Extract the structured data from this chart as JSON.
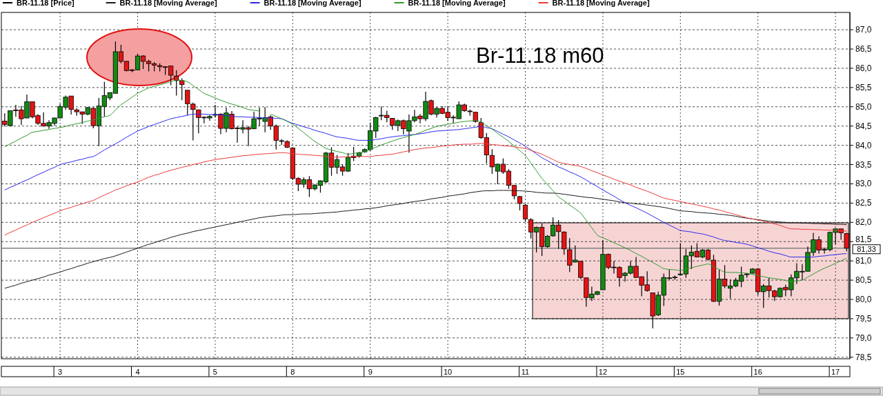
{
  "chart_data": {
    "type": "candlestick",
    "title": "Br-11.18 m60",
    "categories": [
      null,
      null,
      null,
      null,
      null,
      null,
      null,
      null,
      null,
      null,
      "3",
      null,
      null,
      null,
      null,
      null,
      null,
      null,
      null,
      null,
      null,
      null,
      null,
      null,
      "4",
      null,
      null,
      null,
      null,
      null,
      null,
      null,
      null,
      null,
      null,
      null,
      null,
      null,
      "5",
      null,
      null,
      null,
      null,
      null,
      null,
      null,
      null,
      null,
      null,
      null,
      null,
      null,
      "8",
      null,
      null,
      null,
      null,
      null,
      null,
      null,
      null,
      null,
      null,
      null,
      null,
      null,
      "9",
      null,
      null,
      null,
      null,
      null,
      null,
      null,
      null,
      null,
      null,
      null,
      null,
      null,
      "10",
      null,
      null,
      null,
      null,
      null,
      null,
      null,
      null,
      null,
      null,
      null,
      null,
      null,
      "11",
      null,
      null,
      null,
      null,
      null,
      null,
      null,
      null,
      null,
      null,
      null,
      null,
      null,
      "12",
      null,
      null,
      null,
      null,
      null,
      null,
      null,
      null,
      null,
      null,
      null,
      null,
      null,
      "15",
      null,
      null,
      null,
      null,
      null,
      null,
      null,
      null,
      null,
      null,
      null,
      null,
      null,
      "16",
      null,
      null,
      null,
      null,
      null,
      null,
      null,
      null,
      null,
      null,
      null,
      null,
      null,
      "17",
      null,
      null
    ],
    "series": [
      {
        "name": "BR-11.18 [Price]",
        "color": "#000000",
        "ohlc": [
          [
            84.63,
            84.83,
            84.49,
            84.54
          ],
          [
            84.51,
            84.9,
            84.49,
            84.9
          ],
          [
            84.92,
            85.05,
            84.74,
            84.9
          ],
          [
            84.92,
            85.02,
            84.53,
            84.69
          ],
          [
            84.71,
            85.32,
            84.7,
            85.13
          ],
          [
            85.13,
            85.14,
            84.7,
            84.74
          ],
          [
            84.77,
            84.81,
            84.53,
            84.57
          ],
          [
            84.57,
            84.86,
            84.5,
            84.5
          ],
          [
            84.5,
            84.65,
            84.43,
            84.59
          ],
          [
            84.57,
            84.72,
            84.51,
            84.71
          ],
          [
            84.71,
            85.08,
            84.7,
            85.01
          ],
          [
            84.99,
            85.29,
            84.92,
            85.25
          ],
          [
            85.28,
            85.28,
            84.8,
            84.93
          ],
          [
            84.92,
            84.96,
            84.77,
            84.87
          ],
          [
            84.87,
            84.87,
            84.56,
            84.81
          ],
          [
            84.81,
            84.99,
            84.78,
            84.98
          ],
          [
            84.96,
            84.99,
            84.44,
            84.51
          ],
          [
            84.51,
            85.23,
            83.98,
            85.02
          ],
          [
            85.01,
            85.65,
            84.75,
            85.29
          ],
          [
            85.23,
            85.37,
            85.17,
            85.37
          ],
          [
            85.35,
            86.7,
            85.35,
            86.43
          ],
          [
            86.43,
            86.61,
            86.13,
            86.18
          ],
          [
            86.18,
            86.19,
            85.92,
            85.94
          ],
          [
            85.96,
            85.98,
            85.9,
            85.94
          ],
          [
            85.96,
            86.38,
            85.95,
            86.32
          ],
          [
            86.32,
            86.34,
            85.98,
            86.18
          ],
          [
            86.18,
            86.22,
            85.92,
            86.12
          ],
          [
            86.12,
            86.16,
            85.92,
            86.08
          ],
          [
            86.07,
            86.13,
            85.92,
            86.04
          ],
          [
            86.04,
            86.05,
            85.83,
            86.03
          ],
          [
            86.06,
            86.07,
            85.56,
            85.82
          ],
          [
            85.8,
            85.95,
            85.29,
            85.68
          ],
          [
            85.68,
            85.74,
            85.17,
            85.58
          ],
          [
            85.43,
            85.43,
            84.78,
            85.08
          ],
          [
            85.07,
            85.11,
            84.13,
            84.93
          ],
          [
            84.92,
            84.93,
            84.31,
            84.72
          ],
          [
            84.73,
            84.75,
            84.57,
            84.72
          ],
          [
            84.71,
            84.78,
            84.64,
            84.75
          ],
          [
            84.79,
            85.05,
            84.72,
            84.8
          ],
          [
            84.81,
            84.83,
            84.29,
            84.44
          ],
          [
            84.44,
            84.98,
            84.34,
            84.84
          ],
          [
            84.81,
            84.89,
            84.41,
            84.43
          ],
          [
            84.45,
            84.49,
            84.07,
            84.44
          ],
          [
            84.42,
            84.65,
            84.31,
            84.46
          ],
          [
            84.46,
            84.5,
            83.98,
            84.42
          ],
          [
            84.43,
            84.87,
            84.42,
            84.69
          ],
          [
            84.69,
            84.98,
            84.51,
            84.7
          ],
          [
            84.62,
            84.99,
            84.34,
            84.72
          ],
          [
            84.74,
            84.78,
            84.4,
            84.5
          ],
          [
            84.5,
            84.54,
            83.89,
            84.13
          ],
          [
            84.12,
            84.16,
            84.01,
            84.11
          ],
          [
            84.1,
            84.13,
            83.93,
            83.95
          ],
          [
            83.93,
            83.95,
            83.1,
            83.14
          ],
          [
            83.14,
            83.17,
            82.81,
            82.99
          ],
          [
            82.99,
            83.17,
            82.9,
            83.11
          ],
          [
            83.11,
            83.2,
            82.66,
            82.87
          ],
          [
            82.87,
            82.99,
            82.83,
            82.97
          ],
          [
            82.96,
            83.09,
            82.77,
            83.08
          ],
          [
            83.05,
            83.83,
            83.02,
            83.8
          ],
          [
            83.8,
            83.95,
            83.21,
            83.43
          ],
          [
            83.43,
            83.75,
            83.26,
            83.63
          ],
          [
            83.44,
            83.51,
            83.21,
            83.33
          ],
          [
            83.33,
            83.8,
            83.31,
            83.69
          ],
          [
            83.72,
            83.96,
            83.59,
            83.68
          ],
          [
            83.72,
            83.83,
            83.68,
            83.81
          ],
          [
            83.83,
            83.92,
            83.81,
            83.89
          ],
          [
            83.89,
            84.59,
            83.86,
            84.38
          ],
          [
            84.37,
            84.74,
            84.19,
            84.72
          ],
          [
            84.77,
            85.01,
            84.65,
            84.78
          ],
          [
            84.78,
            84.9,
            84.6,
            84.72
          ],
          [
            84.7,
            84.71,
            84.4,
            84.52
          ],
          [
            84.52,
            84.67,
            84.37,
            84.64
          ],
          [
            84.64,
            84.67,
            84.28,
            84.43
          ],
          [
            84.37,
            84.8,
            83.81,
            84.64
          ],
          [
            84.64,
            84.92,
            84.6,
            84.74
          ],
          [
            84.76,
            84.81,
            84.57,
            84.69
          ],
          [
            84.69,
            85.39,
            84.63,
            85.14
          ],
          [
            85.16,
            85.19,
            84.78,
            84.81
          ],
          [
            84.81,
            84.99,
            84.72,
            84.96
          ],
          [
            84.96,
            85.02,
            84.81,
            84.83
          ],
          [
            84.86,
            85.01,
            84.63,
            84.72
          ],
          [
            84.73,
            84.78,
            84.57,
            84.72
          ],
          [
            84.69,
            85.14,
            84.69,
            85.05
          ],
          [
            85.05,
            85.08,
            84.87,
            84.9
          ],
          [
            84.89,
            84.93,
            84.77,
            84.88
          ],
          [
            84.86,
            84.87,
            84.59,
            84.62
          ],
          [
            84.59,
            84.71,
            84.17,
            84.2
          ],
          [
            84.2,
            84.32,
            83.53,
            83.75
          ],
          [
            83.74,
            83.9,
            83.26,
            83.44
          ],
          [
            83.33,
            83.53,
            82.99,
            83.51
          ],
          [
            83.51,
            83.66,
            83.26,
            83.31
          ],
          [
            83.33,
            83.38,
            82.87,
            82.96
          ],
          [
            82.96,
            82.97,
            82.6,
            82.69
          ],
          [
            82.67,
            82.69,
            82.31,
            82.49
          ],
          [
            82.45,
            82.48,
            82.01,
            82.09
          ],
          [
            82.07,
            82.11,
            81.58,
            81.75
          ],
          [
            81.75,
            81.89,
            81.22,
            81.87
          ],
          [
            81.87,
            81.97,
            81.13,
            81.37
          ],
          [
            81.37,
            81.67,
            81.34,
            81.64
          ],
          [
            81.65,
            82.13,
            81.63,
            81.93
          ],
          [
            81.93,
            82.06,
            81.31,
            81.76
          ],
          [
            81.75,
            81.77,
            81.16,
            81.31
          ],
          [
            81.29,
            81.59,
            80.71,
            80.89
          ],
          [
            80.97,
            81.4,
            80.96,
            81.02
          ],
          [
            80.99,
            80.99,
            80.53,
            80.57
          ],
          [
            80.56,
            80.57,
            79.81,
            80.05
          ],
          [
            80.04,
            80.33,
            79.96,
            80.14
          ],
          [
            80.13,
            80.22,
            80.11,
            80.2
          ],
          [
            80.25,
            81.53,
            80.25,
            81.17
          ],
          [
            81.17,
            81.19,
            80.79,
            80.83
          ],
          [
            80.84,
            81,
            80.67,
            80.83
          ],
          [
            80.83,
            80.86,
            80.33,
            80.57
          ],
          [
            80.62,
            80.71,
            80.46,
            80.68
          ],
          [
            80.68,
            81,
            80.65,
            80.86
          ],
          [
            80.86,
            81.1,
            80.56,
            80.57
          ],
          [
            80.59,
            80.59,
            80.08,
            80.37
          ],
          [
            80.38,
            80.73,
            80.2,
            80.23
          ],
          [
            80.17,
            80.17,
            79.25,
            79.57
          ],
          [
            79.6,
            80.2,
            79.57,
            80.11
          ],
          [
            80.11,
            80.67,
            79.83,
            80.57
          ],
          [
            80.55,
            80.77,
            80.51,
            80.56
          ],
          [
            80.57,
            80.62,
            80.51,
            80.58
          ],
          [
            80.64,
            81.46,
            80.62,
            80.66
          ],
          [
            80.66,
            81.31,
            80.56,
            81.13
          ],
          [
            81.13,
            81.4,
            80.79,
            81.23
          ],
          [
            81.25,
            81.46,
            81.09,
            81.1
          ],
          [
            81.1,
            81.31,
            81.07,
            81.28
          ],
          [
            81.28,
            81.31,
            81.01,
            81.04
          ],
          [
            81.02,
            81.16,
            79.93,
            79.95
          ],
          [
            79.95,
            80.77,
            79.84,
            80.53
          ],
          [
            80.53,
            80.89,
            80.29,
            80.35
          ],
          [
            80.29,
            80.52,
            80.02,
            80.35
          ],
          [
            80.35,
            80.56,
            80.32,
            80.5
          ],
          [
            80.47,
            80.85,
            80.32,
            80.63
          ],
          [
            80.65,
            80.68,
            80.56,
            80.66
          ],
          [
            80.68,
            80.81,
            80.67,
            80.79
          ],
          [
            80.79,
            80.8,
            80.11,
            80.2
          ],
          [
            80.2,
            80.4,
            79.78,
            80.35
          ],
          [
            80.35,
            80.56,
            80.05,
            80.23
          ],
          [
            80.22,
            80.25,
            79.96,
            80.07
          ],
          [
            80.07,
            80.31,
            80.05,
            80.29
          ],
          [
            80.31,
            80.38,
            80.08,
            80.25
          ],
          [
            80.25,
            80.65,
            80.08,
            80.56
          ],
          [
            80.56,
            80.94,
            80.4,
            80.73
          ],
          [
            80.72,
            80.92,
            80.5,
            80.73
          ],
          [
            80.73,
            81.37,
            80.73,
            81.22
          ],
          [
            81.22,
            81.73,
            81.13,
            81.55
          ],
          [
            81.55,
            81.64,
            81.19,
            81.28
          ],
          [
            81.29,
            81.34,
            81.19,
            81.3
          ],
          [
            81.29,
            81.76,
            81.25,
            81.74
          ],
          [
            81.74,
            81.85,
            81.43,
            81.83
          ],
          [
            81.83,
            81.83,
            81.55,
            81.73
          ],
          [
            81.71,
            81.73,
            81.25,
            81.33
          ]
        ]
      },
      {
        "name": "BR-11.18 [Moving Average]",
        "type": "line",
        "color": "#1a1a1a",
        "values": [
          80.29,
          80.33,
          80.37,
          80.42,
          80.46,
          80.5,
          80.54,
          80.58,
          80.63,
          80.67,
          80.71,
          80.76,
          80.8,
          80.85,
          80.89,
          80.94,
          80.98,
          81.02,
          81.06,
          81.09,
          81.13,
          81.18,
          81.23,
          81.28,
          81.33,
          81.38,
          81.43,
          81.47,
          81.52,
          81.56,
          81.61,
          81.65,
          81.69,
          81.72,
          81.76,
          81.79,
          81.82,
          81.85,
          81.88,
          81.91,
          81.94,
          81.97,
          82,
          82.03,
          82.06,
          82.09,
          82.12,
          82.14,
          82.16,
          82.17,
          82.19,
          82.2,
          82.2,
          82.21,
          82.22,
          82.22,
          82.23,
          82.24,
          82.25,
          82.26,
          82.27,
          82.29,
          82.3,
          82.32,
          82.33,
          82.35,
          82.36,
          82.38,
          82.4,
          82.43,
          82.45,
          82.47,
          82.49,
          82.52,
          82.54,
          82.56,
          82.58,
          82.61,
          82.63,
          82.65,
          82.68,
          82.7,
          82.72,
          82.74,
          82.77,
          82.79,
          82.81,
          82.82,
          82.82,
          82.83,
          82.83,
          82.83,
          82.82,
          82.82,
          82.81,
          82.8,
          82.78,
          82.77,
          82.76,
          82.76,
          82.75,
          82.73,
          82.71,
          82.69,
          82.67,
          82.65,
          82.64,
          82.62,
          82.6,
          82.58,
          82.56,
          82.53,
          82.51,
          82.5,
          82.48,
          82.47,
          82.45,
          82.43,
          82.41,
          82.39,
          82.36,
          82.33,
          82.3,
          82.29,
          82.28,
          82.26,
          82.25,
          82.24,
          82.23,
          82.21,
          82.2,
          82.18,
          82.16,
          82.13,
          82.11,
          82.09,
          82.07,
          82.05,
          82.03,
          82.02,
          82.01,
          82,
          81.99,
          81.99,
          81.98,
          81.98,
          81.97,
          81.97,
          81.96,
          81.96,
          81.95,
          81.95,
          81.94
        ]
      },
      {
        "name": "BR-11.18 [Moving Average]",
        "type": "line",
        "color": "#2a2aee",
        "values": [
          82.84,
          82.91,
          82.97,
          83.04,
          83.1,
          83.17,
          83.24,
          83.3,
          83.37,
          83.43,
          83.5,
          83.54,
          83.57,
          83.61,
          83.64,
          83.68,
          83.71,
          83.79,
          83.88,
          83.96,
          84.04,
          84.12,
          84.21,
          84.29,
          84.37,
          84.43,
          84.49,
          84.54,
          84.59,
          84.64,
          84.69,
          84.72,
          84.75,
          84.78,
          84.81,
          84.81,
          84.81,
          84.8,
          84.8,
          84.79,
          84.77,
          84.76,
          84.74,
          84.74,
          84.73,
          84.73,
          84.72,
          84.71,
          84.71,
          84.7,
          84.69,
          84.63,
          84.57,
          84.53,
          84.48,
          84.44,
          84.39,
          84.35,
          84.31,
          84.26,
          84.22,
          84.2,
          84.18,
          84.15,
          84.13,
          84.13,
          84.13,
          84.15,
          84.17,
          84.2,
          84.22,
          84.24,
          84.25,
          84.27,
          84.28,
          84.3,
          84.32,
          84.35,
          84.37,
          84.38,
          84.39,
          84.4,
          84.41,
          84.43,
          84.45,
          84.47,
          84.49,
          84.46,
          84.43,
          84.36,
          84.29,
          84.22,
          84.14,
          84.06,
          83.98,
          83.88,
          83.78,
          83.68,
          83.6,
          83.52,
          83.44,
          83.38,
          83.31,
          83.25,
          83.18,
          83.1,
          83.01,
          82.93,
          82.84,
          82.76,
          82.68,
          82.59,
          82.51,
          82.44,
          82.38,
          82.31,
          82.24,
          82.16,
          82.08,
          82,
          81.93,
          81.86,
          81.79,
          81.77,
          81.75,
          81.72,
          81.7,
          81.66,
          81.62,
          81.57,
          81.53,
          81.51,
          81.48,
          81.46,
          81.43,
          81.39,
          81.34,
          81.3,
          81.25,
          81.21,
          81.18,
          81.14,
          81.1,
          81.1,
          81.1,
          81.1,
          81.1,
          81.12,
          81.13,
          81.15,
          81.16,
          81.18,
          81.19
        ]
      },
      {
        "name": "BR-11.18 [Moving Average]",
        "type": "line",
        "color": "#2e9a2e",
        "values": [
          83.96,
          84.04,
          84.11,
          84.19,
          84.26,
          84.34,
          84.36,
          84.39,
          84.41,
          84.44,
          84.46,
          84.49,
          84.53,
          84.56,
          84.59,
          84.63,
          84.66,
          84.7,
          84.74,
          84.78,
          84.92,
          85.05,
          85.15,
          85.25,
          85.35,
          85.42,
          85.49,
          85.53,
          85.57,
          85.61,
          85.65,
          85.7,
          85.68,
          85.65,
          85.55,
          85.45,
          85.35,
          85.29,
          85.23,
          85.17,
          85.12,
          85.07,
          85.03,
          84.98,
          84.93,
          84.91,
          84.89,
          null,
          84.81,
          84.75,
          84.69,
          84.62,
          84.55,
          84.44,
          84.33,
          84.21,
          84.1,
          84.01,
          83.92,
          83.88,
          83.84,
          83.81,
          83.77,
          83.79,
          83.81,
          83.83,
          83.89,
          83.95,
          84.01,
          84.06,
          84.11,
          84.16,
          84.2,
          84.24,
          84.28,
          84.33,
          84.39,
          84.44,
          84.49,
          84.52,
          84.55,
          84.57,
          84.6,
          84.62,
          84.63,
          84.65,
          84.6,
          84.51,
          84.42,
          84.31,
          84.21,
          84.1,
          83.98,
          83.86,
          83.74,
          83.54,
          83.34,
          83.14,
          82.98,
          82.82,
          82.66,
          82.56,
          82.45,
          82.35,
          82.24,
          82.05,
          81.86,
          81.67,
          81.6,
          81.54,
          81.47,
          81.41,
          81.34,
          81.27,
          81.19,
          81.12,
          81.04,
          80.96,
          80.88,
          80.8,
          80.78,
          80.77,
          80.75,
          80.79,
          80.82,
          80.86,
          80.89,
          80.92,
          80.85,
          80.78,
          80.71,
          80.7,
          80.7,
          80.69,
          80.68,
          80.65,
          80.62,
          80.59,
          80.56,
          80.54,
          80.52,
          80.49,
          80.47,
          80.48,
          80.5,
          80.58,
          80.66,
          80.74,
          80.81,
          80.87,
          80.94,
          81,
          81.07
        ]
      },
      {
        "name": "BR-11.18 [Moving Average]",
        "type": "line",
        "color": "#ee3a3a",
        "values": [
          81.67,
          81.74,
          81.8,
          81.87,
          81.93,
          82,
          82.06,
          82.12,
          82.18,
          82.24,
          82.3,
          82.35,
          82.39,
          82.44,
          82.48,
          82.53,
          82.57,
          82.64,
          82.71,
          82.77,
          82.84,
          82.89,
          82.95,
          83,
          83.05,
          83.11,
          83.17,
          83.22,
          83.26,
          83.31,
          83.35,
          83.39,
          83.43,
          83.46,
          83.5,
          83.53,
          83.57,
          83.6,
          83.63,
          83.65,
          83.67,
          83.69,
          83.71,
          83.73,
          83.74,
          83.76,
          83.77,
          83.78,
          83.79,
          83.8,
          83.81,
          83.8,
          83.78,
          83.77,
          83.76,
          83.75,
          83.74,
          83.73,
          83.71,
          83.7,
          83.69,
          83.7,
          83.7,
          83.71,
          83.71,
          83.71,
          83.71,
          83.73,
          83.74,
          83.76,
          83.77,
          83.8,
          83.83,
          83.86,
          83.89,
          83.91,
          83.93,
          83.94,
          83.96,
          83.98,
          83.99,
          84.01,
          84.02,
          84.03,
          84.03,
          84.04,
          84.05,
          84.04,
          84.02,
          84.01,
          83.99,
          83.98,
          83.96,
          83.94,
          83.92,
          83.87,
          83.82,
          83.77,
          83.7,
          83.63,
          83.56,
          83.53,
          83.5,
          83.48,
          83.45,
          83.4,
          83.34,
          83.29,
          83.23,
          83.18,
          83.12,
          83.07,
          83.02,
          82.97,
          82.91,
          82.86,
          82.81,
          82.75,
          82.69,
          82.63,
          82.6,
          82.57,
          82.54,
          82.51,
          82.48,
          82.45,
          82.42,
          82.39,
          82.35,
          82.32,
          82.28,
          82.24,
          82.2,
          82.16,
          82.12,
          82.09,
          82.06,
          82.03,
          82,
          81.96,
          81.92,
          81.87,
          81.83,
          81.83,
          81.82,
          81.82,
          81.81,
          81.81,
          81.8,
          81.8,
          81.79,
          81.78,
          81.77
        ]
      }
    ],
    "ylim": [
      78.46,
      87.45
    ],
    "yticks": [
      {
        "value": 78.5,
        "label": "78,5"
      },
      {
        "value": 79,
        "label": "79,0"
      },
      {
        "value": 79.5,
        "label": "79,5"
      },
      {
        "value": 80,
        "label": "80,0"
      },
      {
        "value": 80.5,
        "label": "80,5"
      },
      {
        "value": 81,
        "label": "81,0"
      },
      {
        "value": 81.5,
        "label": "81,5"
      },
      {
        "value": 82,
        "label": "82,0"
      },
      {
        "value": 82.5,
        "label": "82,5"
      },
      {
        "value": 83,
        "label": "83,0"
      },
      {
        "value": 83.5,
        "label": "83,5"
      },
      {
        "value": 84,
        "label": "84,0"
      },
      {
        "value": 84.5,
        "label": "84,5"
      },
      {
        "value": 85,
        "label": "85,0"
      },
      {
        "value": 85.5,
        "label": "85,5"
      },
      {
        "value": 86,
        "label": "86,0"
      },
      {
        "value": 86.5,
        "label": "86,5"
      },
      {
        "value": 87,
        "label": "87,0"
      }
    ],
    "grid": true,
    "legend": "top",
    "ref_lines": [
      {
        "axis": "y",
        "value": 81.33,
        "label": "81,33",
        "color": "#808080"
      }
    ]
  }
}
